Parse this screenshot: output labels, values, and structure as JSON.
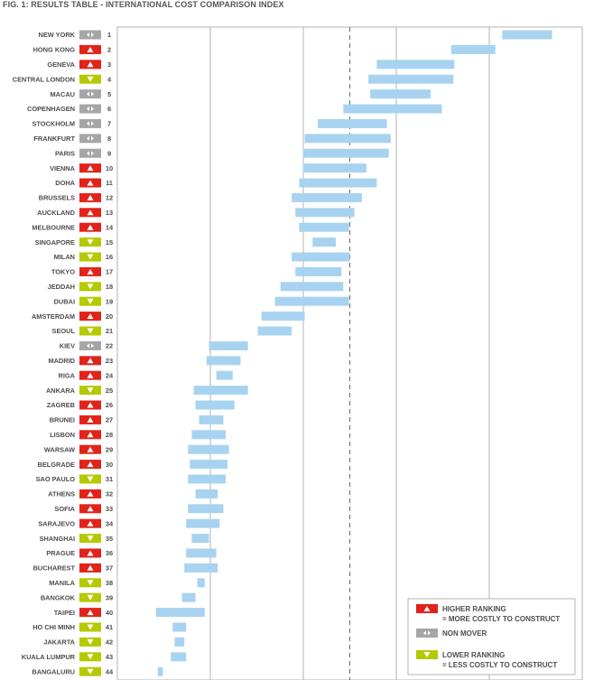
{
  "header": {
    "title": "FIG. 1: RESULTS TABLE - INTERNATIONAL COST COMPARISON INDEX"
  },
  "colors": {
    "bar": "#a8d3f0",
    "up": "#e2231a",
    "down": "#b5c900",
    "same": "#a6a6a6",
    "grid": "#b3b3b3",
    "median": "#777777"
  },
  "legend": {
    "higher_title": "HIGHER RANKING",
    "higher_sub": "= MORE COSTLY TO CONSTRUCT",
    "same_title": "NON MOVER",
    "lower_title": "LOWER RANKING",
    "lower_sub": "= LESS COSTLY TO CONSTRUCT"
  },
  "chart_data": {
    "type": "bar",
    "orientation": "horizontal-range",
    "title": "FIG. 1: RESULTS TABLE - INTERNATIONAL COST COMPARISON INDEX",
    "xlabel": "",
    "ylabel": "",
    "xlim": [
      0,
      100
    ],
    "gridlines_x": [
      20,
      40,
      60,
      80
    ],
    "median_x": 50,
    "grid": true,
    "legend_position": "bottom-right",
    "series": [
      {
        "values": [
          {
            "city": "NEW YORK",
            "rank": 1,
            "movement": "same",
            "low": 82.8,
            "high": 93.5
          },
          {
            "city": "HONG KONG",
            "rank": 2,
            "movement": "up",
            "low": 71.8,
            "high": 81.3
          },
          {
            "city": "GENEVA",
            "rank": 3,
            "movement": "up",
            "low": 55.8,
            "high": 72.5
          },
          {
            "city": "CENTRAL LONDON",
            "rank": 4,
            "movement": "down",
            "low": 54.0,
            "high": 72.3
          },
          {
            "city": "MACAU",
            "rank": 5,
            "movement": "same",
            "low": 54.4,
            "high": 67.4
          },
          {
            "city": "COPENHAGEN",
            "rank": 6,
            "movement": "same",
            "low": 48.6,
            "high": 69.8
          },
          {
            "city": "STOCKHOLM",
            "rank": 7,
            "movement": "same",
            "low": 43.1,
            "high": 58.0
          },
          {
            "city": "FRANKFURT",
            "rank": 8,
            "movement": "same",
            "low": 40.3,
            "high": 58.8
          },
          {
            "city": "PARIS",
            "rank": 9,
            "movement": "same",
            "low": 39.9,
            "high": 58.4
          },
          {
            "city": "VIENNA",
            "rank": 10,
            "movement": "up",
            "low": 39.9,
            "high": 53.6
          },
          {
            "city": "DOHA",
            "rank": 11,
            "movement": "up",
            "low": 39.1,
            "high": 55.8
          },
          {
            "city": "BRUSSELS",
            "rank": 12,
            "movement": "up",
            "low": 37.5,
            "high": 52.6
          },
          {
            "city": "AUCKLAND",
            "rank": 13,
            "movement": "up",
            "low": 38.3,
            "high": 51.0
          },
          {
            "city": "MELBOURNE",
            "rank": 14,
            "movement": "up",
            "low": 39.1,
            "high": 49.8
          },
          {
            "city": "SINGAPORE",
            "rank": 15,
            "movement": "down",
            "low": 42.0,
            "high": 47.0
          },
          {
            "city": "MILAN",
            "rank": 16,
            "movement": "down",
            "low": 37.5,
            "high": 50.0
          },
          {
            "city": "TOKYO",
            "rank": 17,
            "movement": "up",
            "low": 38.3,
            "high": 48.2
          },
          {
            "city": "JEDDAH",
            "rank": 18,
            "movement": "down",
            "low": 35.1,
            "high": 48.6
          },
          {
            "city": "DUBAI",
            "rank": 19,
            "movement": "down",
            "low": 33.9,
            "high": 49.8
          },
          {
            "city": "AMSTERDAM",
            "rank": 20,
            "movement": "up",
            "low": 31.0,
            "high": 40.3
          },
          {
            "city": "SEOUL",
            "rank": 21,
            "movement": "down",
            "low": 30.2,
            "high": 37.5
          },
          {
            "city": "KIEV",
            "rank": 22,
            "movement": "same",
            "low": 19.7,
            "high": 28.1
          },
          {
            "city": "MADRID",
            "rank": 23,
            "movement": "up",
            "low": 19.2,
            "high": 26.5
          },
          {
            "city": "RIGA",
            "rank": 24,
            "movement": "up",
            "low": 21.3,
            "high": 24.8
          },
          {
            "city": "ANKARA",
            "rank": 25,
            "movement": "down",
            "low": 16.4,
            "high": 28.1
          },
          {
            "city": "ZAGREB",
            "rank": 26,
            "movement": "up",
            "low": 16.8,
            "high": 25.2
          },
          {
            "city": "BRUNEI",
            "rank": 27,
            "movement": "up",
            "low": 17.6,
            "high": 22.8
          },
          {
            "city": "LISBON",
            "rank": 28,
            "movement": "up",
            "low": 16.0,
            "high": 23.3
          },
          {
            "city": "WARSAW",
            "rank": 29,
            "movement": "up",
            "low": 15.2,
            "high": 24.0
          },
          {
            "city": "BELGRADE",
            "rank": 30,
            "movement": "up",
            "low": 15.6,
            "high": 23.7
          },
          {
            "city": "SAO PAULO",
            "rank": 31,
            "movement": "down",
            "low": 15.2,
            "high": 23.3
          },
          {
            "city": "ATHENS",
            "rank": 32,
            "movement": "up",
            "low": 16.8,
            "high": 21.6
          },
          {
            "city": "SOFIA",
            "rank": 33,
            "movement": "up",
            "low": 15.2,
            "high": 22.8
          },
          {
            "city": "SARAJEVO",
            "rank": 34,
            "movement": "up",
            "low": 14.8,
            "high": 22.0
          },
          {
            "city": "SHANGHAI",
            "rank": 35,
            "movement": "down",
            "low": 16.0,
            "high": 19.7
          },
          {
            "city": "PRAGUE",
            "rank": 36,
            "movement": "up",
            "low": 14.8,
            "high": 21.3
          },
          {
            "city": "BUCHAREST",
            "rank": 37,
            "movement": "up",
            "low": 14.4,
            "high": 21.6
          },
          {
            "city": "MANILA",
            "rank": 38,
            "movement": "down",
            "low": 17.2,
            "high": 18.8
          },
          {
            "city": "BANGKOK",
            "rank": 39,
            "movement": "down",
            "low": 13.9,
            "high": 16.8
          },
          {
            "city": "TAIPEI",
            "rank": 40,
            "movement": "up",
            "low": 8.3,
            "high": 18.8
          },
          {
            "city": "HO CHI MINH",
            "rank": 41,
            "movement": "down",
            "low": 11.9,
            "high": 14.8
          },
          {
            "city": "JAKARTA",
            "rank": 42,
            "movement": "down",
            "low": 12.3,
            "high": 14.4
          },
          {
            "city": "KUALA LUMPUR",
            "rank": 43,
            "movement": "down",
            "low": 11.5,
            "high": 14.8
          },
          {
            "city": "BANGALURU",
            "rank": 44,
            "movement": "down",
            "low": 8.7,
            "high": 9.8
          }
        ]
      }
    ]
  }
}
